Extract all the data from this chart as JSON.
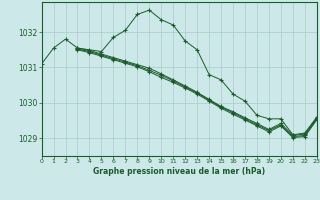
{
  "title": "Graphe pression niveau de la mer (hPa)",
  "bg_color": "#cce8e8",
  "plot_bg_color": "#cce8e8",
  "grid_color": "#aacccc",
  "line_color": "#1a5c2a",
  "xlim": [
    0,
    23
  ],
  "ylim": [
    1028.5,
    1032.85
  ],
  "yticks": [
    1029,
    1030,
    1031,
    1032
  ],
  "xticks": [
    0,
    1,
    2,
    3,
    4,
    5,
    6,
    7,
    8,
    9,
    10,
    11,
    12,
    13,
    14,
    15,
    16,
    17,
    18,
    19,
    20,
    21,
    22,
    23
  ],
  "series": [
    {
      "x": [
        0,
        1,
        2,
        3,
        4,
        5,
        6,
        7,
        8,
        9,
        10,
        11,
        12,
        13,
        14,
        15,
        16,
        17,
        18,
        19,
        20,
        21,
        22,
        23
      ],
      "y": [
        1031.1,
        1031.55,
        1031.8,
        1031.55,
        1031.5,
        1031.45,
        1031.85,
        1032.05,
        1032.5,
        1032.62,
        1032.35,
        1032.2,
        1031.75,
        1031.5,
        1030.8,
        1030.65,
        1030.25,
        1030.05,
        1029.65,
        1029.55,
        1029.55,
        1029.1,
        1029.15,
        1029.6
      ]
    },
    {
      "x": [
        3,
        4,
        5,
        6,
        7,
        8,
        9,
        10,
        11,
        12,
        13,
        14,
        15,
        16,
        17,
        18,
        19,
        20,
        21,
        22,
        23
      ],
      "y": [
        1031.55,
        1031.48,
        1031.38,
        1031.28,
        1031.18,
        1031.08,
        1030.98,
        1030.82,
        1030.65,
        1030.48,
        1030.3,
        1030.1,
        1029.9,
        1029.75,
        1029.58,
        1029.42,
        1029.25,
        1029.42,
        1029.08,
        1029.12,
        1029.58
      ]
    },
    {
      "x": [
        3,
        4,
        5,
        6,
        7,
        8,
        9,
        10,
        11,
        12,
        13,
        14,
        15,
        16,
        17,
        18,
        19,
        20,
        21,
        22,
        23
      ],
      "y": [
        1031.52,
        1031.45,
        1031.35,
        1031.25,
        1031.15,
        1031.05,
        1030.92,
        1030.78,
        1030.62,
        1030.45,
        1030.28,
        1030.08,
        1029.88,
        1029.72,
        1029.55,
        1029.38,
        1029.22,
        1029.38,
        1029.05,
        1029.08,
        1029.55
      ]
    },
    {
      "x": [
        3,
        4,
        5,
        6,
        7,
        8,
        9,
        10,
        11,
        12,
        13,
        14,
        15,
        16,
        17,
        18,
        19,
        20,
        21,
        22,
        23
      ],
      "y": [
        1031.5,
        1031.42,
        1031.32,
        1031.22,
        1031.12,
        1031.02,
        1030.88,
        1030.72,
        1030.58,
        1030.42,
        1030.25,
        1030.05,
        1029.85,
        1029.68,
        1029.52,
        1029.35,
        1029.18,
        1029.35,
        1029.02,
        1029.05,
        1029.52
      ]
    }
  ]
}
